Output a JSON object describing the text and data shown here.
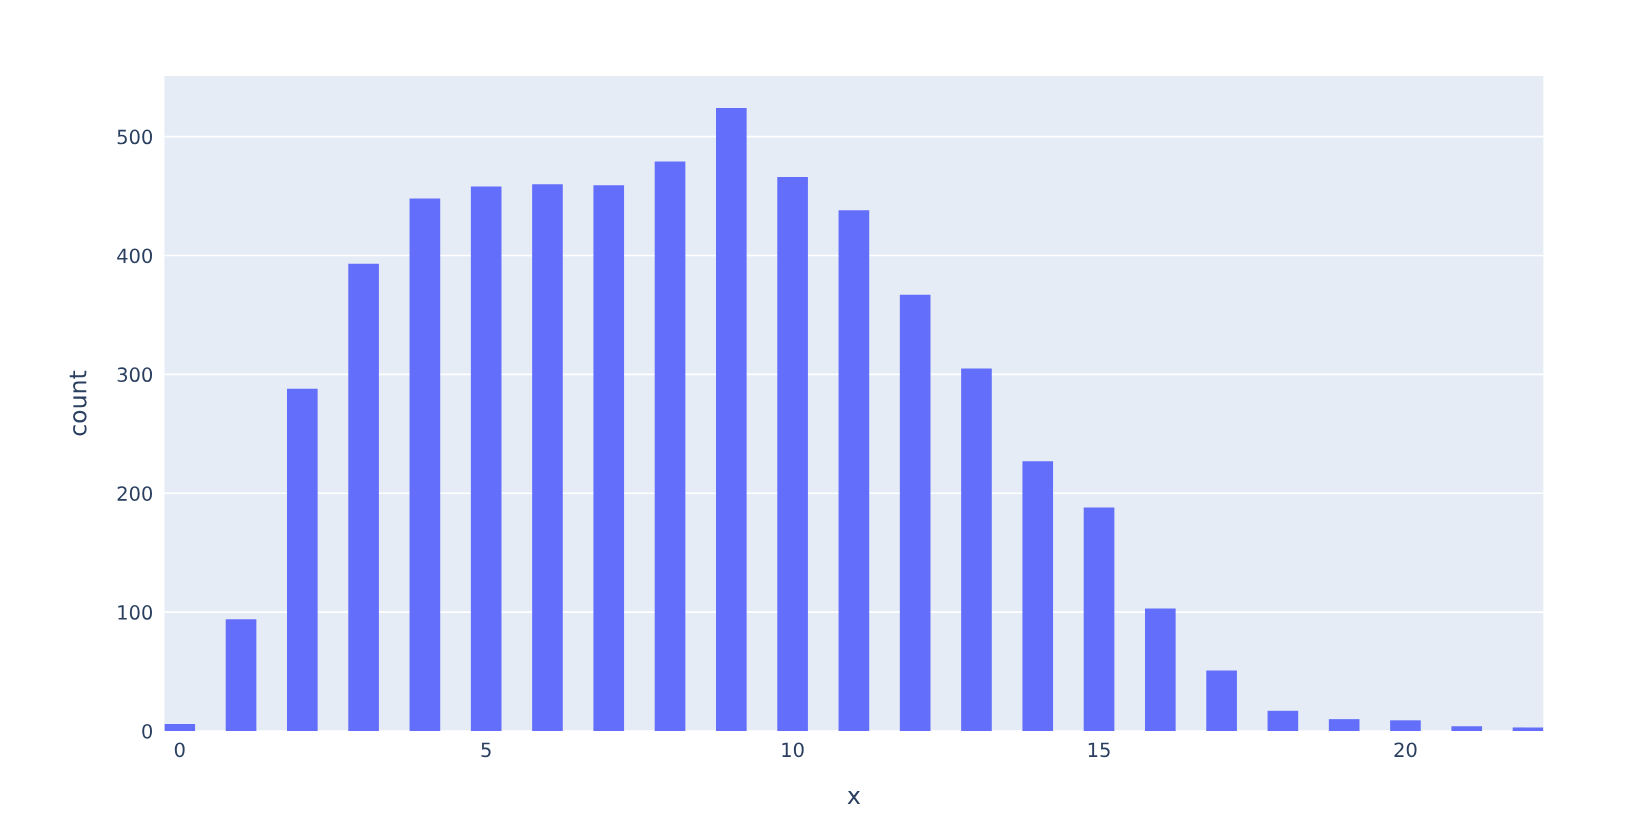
{
  "chart_data": {
    "type": "bar",
    "xlabel": "x",
    "ylabel": "count",
    "x": [
      0,
      1,
      2,
      3,
      4,
      5,
      6,
      7,
      8,
      9,
      10,
      11,
      12,
      13,
      14,
      15,
      16,
      17,
      18,
      19,
      20,
      21,
      22
    ],
    "series": [
      {
        "color": "#636efa",
        "values": [
          6,
          94,
          288,
          393,
          448,
          458,
          460,
          459,
          479,
          524,
          466,
          438,
          367,
          305,
          227,
          188,
          103,
          51,
          17,
          10,
          9,
          4,
          3
        ]
      }
    ],
    "xlim": [
      -0.25,
      22.25
    ],
    "xticks": [
      0,
      5,
      10,
      15,
      20
    ],
    "ylim": [
      0,
      551
    ],
    "yticks": [
      0,
      100,
      200,
      300,
      400,
      500
    ],
    "grid": "y",
    "legend": false
  }
}
